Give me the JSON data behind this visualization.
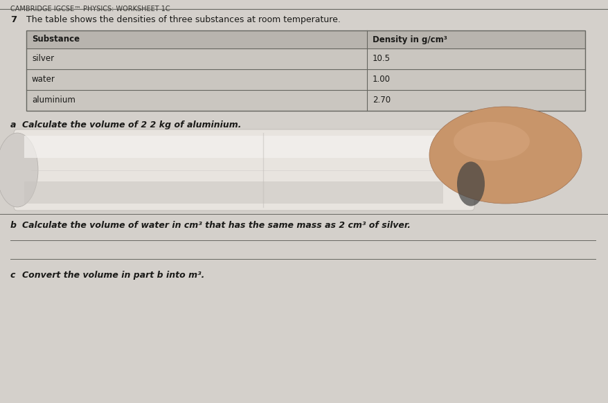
{
  "header_text": "CAMBRIDGE IGCSE™ PHYSICS: WORKSHEET 1C",
  "question_number": "7",
  "intro_text": "The table shows the densities of three substances at room temperature.",
  "table_headers": [
    "Substance",
    "Density in g/cm³"
  ],
  "table_rows": [
    [
      "silver",
      "10.5"
    ],
    [
      "water",
      "1.00"
    ],
    [
      "aluminium",
      "2.70"
    ]
  ],
  "question_a_prefix": "a",
  "question_a_text": "Calculate the volume of 2 2 kg of aluminium.",
  "question_b_prefix": "b",
  "question_b_text": "Calculate the volume of water in cm³ that has the same mass as 2 cm³ of silver.",
  "question_c_prefix": "c",
  "question_c_text": "Convert the volume in part b into m³.",
  "bg_color": "#c8c4be",
  "paper_color": "#d4d0cb",
  "table_header_bg": "#b8b4ae",
  "table_row_bg": "#cac6c0",
  "line_color": "#666660",
  "text_color": "#1a1a18",
  "pen_body_color": "#e8e4df",
  "pen_shadow_color": "#c8c4bf",
  "pen_highlight_color": "#f4f2ef",
  "finger_color": "#c8956a",
  "finger_shadow": "#b07850"
}
